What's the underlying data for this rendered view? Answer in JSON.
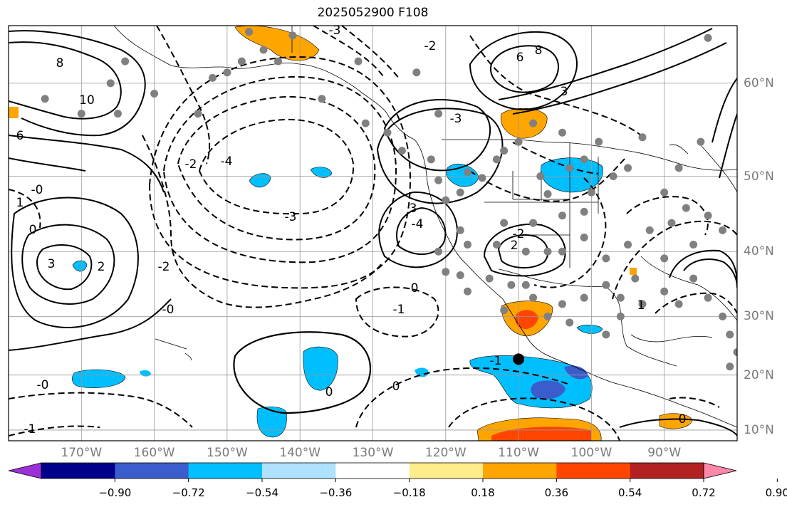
{
  "title": "2025052900 F108",
  "map_extent": {
    "lon": [
      -180,
      -80
    ],
    "lat": [
      8,
      65
    ]
  },
  "lon_ticks": [
    {
      "value": -170,
      "label": "170°W"
    },
    {
      "value": -160,
      "label": "160°W"
    },
    {
      "value": -150,
      "label": "150°W"
    },
    {
      "value": -140,
      "label": "140°W"
    },
    {
      "value": -130,
      "label": "130°W"
    },
    {
      "value": -120,
      "label": "120°W"
    },
    {
      "value": -110,
      "label": "110°W"
    },
    {
      "value": -100,
      "label": "100°W"
    },
    {
      "value": -90,
      "label": "90°W"
    }
  ],
  "lat_ticks": [
    {
      "value": 60,
      "label": "60°N"
    },
    {
      "value": 50,
      "label": "50°N"
    },
    {
      "value": 40,
      "label": "40°N"
    },
    {
      "value": 30,
      "label": "30°N"
    },
    {
      "value": 20,
      "label": "20°N"
    },
    {
      "value": 10,
      "label": "10°N"
    }
  ],
  "colorbar": {
    "colors": [
      "#9b30d9",
      "#00008b",
      "#3a5ccc",
      "#00bfff",
      "#aee2ff",
      "#ffffff",
      "#ffec8b",
      "#ffa500",
      "#ff4500",
      "#b22222",
      "#ff88aa"
    ],
    "labels": [
      "−0.90",
      "−0.72",
      "−0.54",
      "−0.36",
      "−0.18",
      "0.18",
      "0.36",
      "0.54",
      "0.72",
      "0.90"
    ]
  },
  "contour_labels": [
    "8",
    "6",
    "10",
    "-0",
    "0",
    "1",
    "-2",
    "-4",
    "-3",
    "3",
    "-1",
    "2",
    "6",
    "8",
    "-2",
    "-3",
    "-4",
    "3",
    "-2",
    "-0",
    "0",
    "-1",
    "0",
    "2",
    "-2",
    "-3",
    "3",
    "-0",
    "1",
    "0",
    "-1",
    "0"
  ],
  "stations": [
    [
      -175,
      58.5
    ],
    [
      -166,
      60
    ],
    [
      -164,
      62
    ],
    [
      -152,
      60.5
    ],
    [
      -147,
      64.5
    ],
    [
      -150,
      61
    ],
    [
      -148,
      62
    ],
    [
      -145,
      63
    ],
    [
      -141,
      64.2
    ],
    [
      -132,
      62
    ],
    [
      -124,
      61
    ],
    [
      -121,
      57
    ],
    [
      -126,
      53
    ],
    [
      -128,
      55
    ],
    [
      -122,
      52
    ],
    [
      -121,
      49.5
    ],
    [
      -120,
      47
    ],
    [
      -118,
      48
    ],
    [
      -117,
      50.5
    ],
    [
      -115,
      49.8
    ],
    [
      -113,
      52
    ],
    [
      -112,
      53
    ],
    [
      -110,
      54
    ],
    [
      -108,
      56
    ],
    [
      -107,
      50
    ],
    [
      -106,
      47.8
    ],
    [
      -104,
      55
    ],
    [
      -103,
      51
    ],
    [
      -101,
      52
    ],
    [
      -99,
      54
    ],
    [
      -97,
      50
    ],
    [
      -95,
      51
    ],
    [
      -93,
      54.5
    ],
    [
      -90,
      48
    ],
    [
      -88,
      51
    ],
    [
      -85,
      54
    ],
    [
      -84,
      64
    ],
    [
      -100,
      48
    ],
    [
      -104,
      45
    ],
    [
      -108,
      44
    ],
    [
      -112,
      44
    ],
    [
      -118,
      43
    ],
    [
      -121,
      40
    ],
    [
      -117,
      41
    ],
    [
      -113,
      41
    ],
    [
      -109,
      40
    ],
    [
      -104,
      40
    ],
    [
      -101,
      42
    ],
    [
      -98,
      39
    ],
    [
      -95,
      41
    ],
    [
      -92,
      43
    ],
    [
      -89,
      44
    ],
    [
      -87,
      46
    ],
    [
      -84,
      45
    ],
    [
      -82,
      43
    ],
    [
      -86,
      41
    ],
    [
      -90,
      39
    ],
    [
      -94,
      36
    ],
    [
      -98,
      35
    ],
    [
      -101,
      33
    ],
    [
      -104,
      32
    ],
    [
      -108,
      33
    ],
    [
      -111,
      35
    ],
    [
      -114,
      36
    ],
    [
      -117,
      34
    ],
    [
      -120,
      37
    ],
    [
      -106,
      30
    ],
    [
      -103,
      29
    ],
    [
      -98,
      27
    ],
    [
      -96,
      30
    ],
    [
      -93,
      32
    ],
    [
      -90,
      34
    ],
    [
      -88,
      32
    ],
    [
      -84,
      33
    ],
    [
      -82,
      30
    ],
    [
      -81,
      27
    ],
    [
      -80,
      24
    ],
    [
      -81,
      21.5
    ],
    [
      -165,
      57
    ],
    [
      -170,
      57
    ],
    [
      -160,
      59
    ],
    [
      -154,
      57
    ],
    [
      -143,
      62
    ],
    [
      -137,
      58.5
    ],
    [
      -131,
      56
    ],
    [
      -118,
      36.5
    ],
    [
      -112,
      31
    ],
    [
      -109,
      35
    ],
    [
      -96,
      33
    ],
    [
      -86,
      36
    ],
    [
      -101,
      45.5
    ],
    [
      -106,
      40
    ]
  ],
  "major_black_dots": [
    [
      -110,
      22.8
    ]
  ]
}
